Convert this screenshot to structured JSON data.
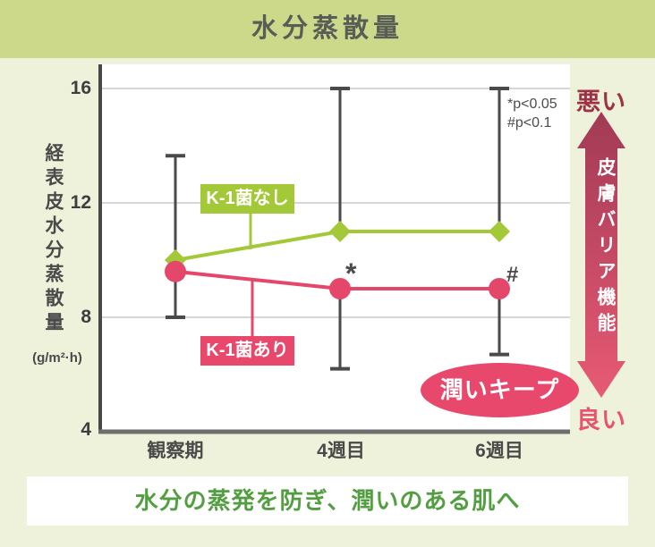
{
  "title": "水分蒸散量",
  "chart_data": {
    "type": "line",
    "title": "水分蒸散量",
    "categories": [
      "観察期",
      "4週目",
      "6週目"
    ],
    "series": [
      {
        "name": "K-1菌なし",
        "color": "#a3c838",
        "marker": "diamond",
        "values": [
          10.0,
          11.0,
          11.0
        ]
      },
      {
        "name": "K-1菌あり",
        "color": "#e5476b",
        "marker": "circle",
        "values": [
          9.6,
          9.0,
          9.0
        ]
      }
    ],
    "error_bars": [
      {
        "xi": 0,
        "lo": 8.0,
        "hi": 13.65,
        "caps": "both"
      },
      {
        "xi": 1,
        "lo": 11.0,
        "hi": 16.0,
        "caps": "top"
      },
      {
        "xi": 1,
        "lo": 6.2,
        "hi": 9.0,
        "caps": "bottom"
      },
      {
        "xi": 2,
        "lo": 11.0,
        "hi": 16.0,
        "caps": "top"
      },
      {
        "xi": 2,
        "lo": 6.7,
        "hi": 9.0,
        "caps": "bottom"
      }
    ],
    "significance": [
      {
        "xi": 1,
        "series": 1,
        "mark": "*"
      },
      {
        "xi": 2,
        "series": 1,
        "mark": "#"
      }
    ],
    "annotations": [
      "*p<0.05",
      "#p<0.1"
    ],
    "ylabel": "経表皮水分蒸散量",
    "yunit": "(g/m²·h)",
    "yticks": [
      16,
      12,
      8,
      4
    ],
    "ylim": [
      4,
      16.8
    ],
    "xlabel": "",
    "grid": true,
    "legend_position": "inline-callouts"
  },
  "indicator": {
    "top_label": "悪い",
    "bottom_label": "良い",
    "arrow_label": "皮膚バリア機能",
    "top_color": "#9c3148",
    "bottom_color": "#e8546e",
    "arrow_top_color": "#a13a55",
    "arrow_bottom_color": "#e85a74"
  },
  "badge": {
    "label": "潤いキープ",
    "color": "#e8486b"
  },
  "footer": {
    "message": "水分の蒸発を防ぎ、潤いのある肌へ",
    "color": "#529e40"
  }
}
